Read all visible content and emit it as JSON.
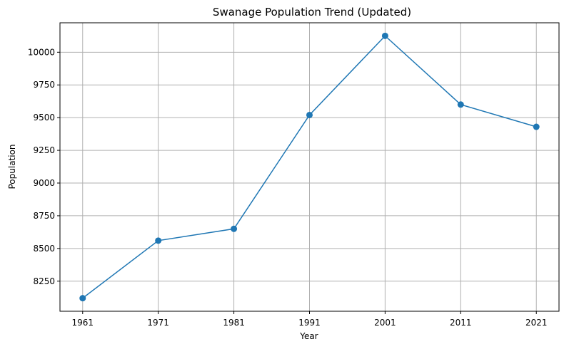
{
  "chart_data": {
    "type": "line",
    "title": "Swanage Population Trend (Updated)",
    "xlabel": "Year",
    "ylabel": "Population",
    "x": [
      1961,
      1971,
      1981,
      1991,
      2001,
      2011,
      2021
    ],
    "x_tick_labels": [
      "1961",
      "1971",
      "1981",
      "1991",
      "2001",
      "2011",
      "2021"
    ],
    "series": [
      {
        "values": [
          8120,
          8560,
          8650,
          9520,
          10125,
          9600,
          9430
        ]
      }
    ],
    "xlim": [
      1958,
      2024
    ],
    "ylim": [
      8020,
      10225
    ],
    "y_ticks": [
      8250,
      8500,
      8750,
      9000,
      9250,
      9500,
      9750,
      10000
    ],
    "y_tick_labels": [
      "8250",
      "8500",
      "8750",
      "9000",
      "9250",
      "9500",
      "9750",
      "10000"
    ],
    "grid": true,
    "marker": "circle",
    "colors": {
      "line": "#1f77b4",
      "grid": "#b0b0b0"
    }
  }
}
